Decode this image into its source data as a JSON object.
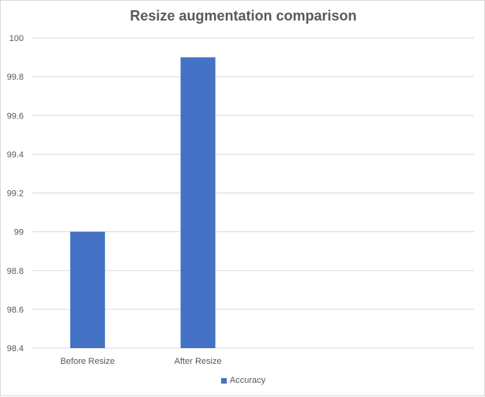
{
  "chart_data": {
    "type": "bar",
    "title": "Resize augmentation comparison",
    "categories": [
      "Before Resize",
      "After Resize"
    ],
    "series": [
      {
        "name": "Accuracy",
        "values": [
          99.0,
          99.9
        ],
        "color": "#4472c4"
      }
    ],
    "ylim": [
      98.4,
      100
    ],
    "yticks": [
      "98.4",
      "98.6",
      "98.8",
      "99",
      "99.2",
      "99.4",
      "99.6",
      "99.8",
      "100"
    ],
    "grid": true,
    "legend_position": "bottom"
  }
}
